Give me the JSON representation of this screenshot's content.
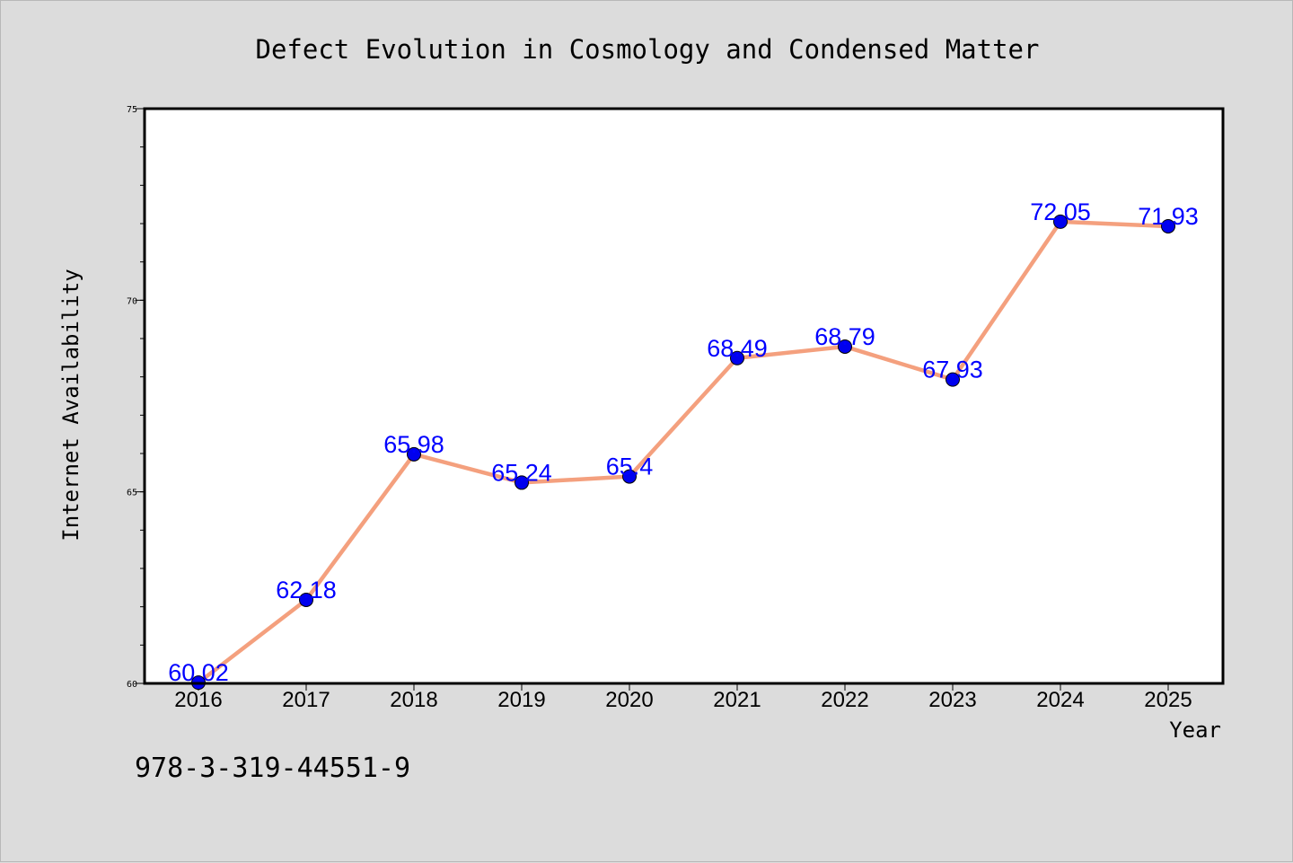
{
  "chart_data": {
    "type": "line",
    "title": "Defect Evolution in Cosmology and Condensed Matter",
    "xlabel": "Year",
    "ylabel": "Internet Availability",
    "categories": [
      "2016",
      "2017",
      "2018",
      "2019",
      "2020",
      "2021",
      "2022",
      "2023",
      "2024",
      "2025"
    ],
    "values": [
      60.02,
      62.18,
      65.98,
      65.24,
      65.4,
      68.49,
      68.79,
      67.93,
      72.05,
      71.93
    ],
    "data_labels": [
      "60.02",
      "62.18",
      "65.98",
      "65.24",
      "65.4",
      "68.49",
      "68.79",
      "67.93",
      "72.05",
      "71.93"
    ],
    "ylim": [
      60,
      75
    ],
    "yticks": [
      "60",
      "65",
      "70",
      "75"
    ],
    "yticks_values": [
      60,
      65,
      70,
      75
    ],
    "grid": false,
    "legend": "none",
    "colors": {
      "line": "#f4a07e",
      "marker": "#0000ee",
      "label": "#0000ff",
      "axis": "#000000",
      "plot_bg": "#ffffff",
      "page_bg": "#dcdcdc"
    }
  },
  "footer_text": "978-3-319-44551-9"
}
